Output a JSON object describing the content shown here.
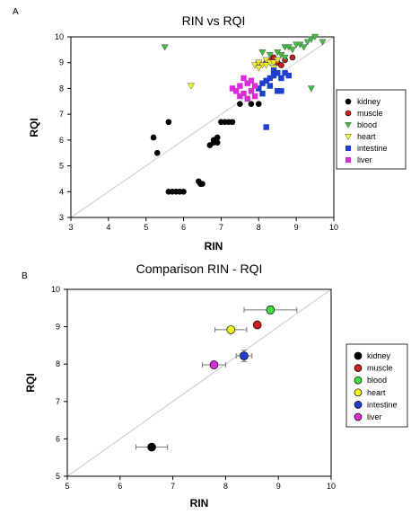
{
  "chart_data": [
    {
      "panel_label": "A",
      "type": "scatter",
      "title": "RIN vs RQI",
      "xlabel": "RIN",
      "ylabel": "RQI",
      "xlim": [
        3,
        10
      ],
      "ylim": [
        3,
        10
      ],
      "xticks": [
        "3",
        "4",
        "5",
        "6",
        "7",
        "8",
        "9",
        "10"
      ],
      "yticks": [
        "3",
        "4",
        "5",
        "6",
        "7",
        "8",
        "9",
        "10"
      ],
      "identity_line": true,
      "legend_position": "right",
      "series": [
        {
          "name": "kidney",
          "marker": "circle",
          "color": "#000000",
          "points": [
            [
              5.2,
              6.1
            ],
            [
              5.3,
              5.5
            ],
            [
              5.6,
              6.7
            ],
            [
              5.6,
              4.0
            ],
            [
              5.7,
              4.0
            ],
            [
              5.8,
              4.0
            ],
            [
              5.9,
              4.0
            ],
            [
              6.0,
              4.0
            ],
            [
              6.4,
              4.4
            ],
            [
              6.45,
              4.3
            ],
            [
              6.5,
              4.3
            ],
            [
              6.7,
              5.8
            ],
            [
              6.8,
              5.9
            ],
            [
              6.8,
              6.0
            ],
            [
              6.9,
              5.9
            ],
            [
              6.9,
              6.1
            ],
            [
              7.0,
              6.7
            ],
            [
              7.1,
              6.7
            ],
            [
              7.2,
              6.7
            ],
            [
              7.3,
              6.7
            ],
            [
              7.5,
              7.4
            ],
            [
              7.8,
              7.4
            ],
            [
              8.0,
              7.4
            ]
          ]
        },
        {
          "name": "muscle",
          "marker": "circle",
          "color": "#cc1f1f",
          "points": [
            [
              8.0,
              9.0
            ],
            [
              8.2,
              9.0
            ],
            [
              8.3,
              9.1
            ],
            [
              8.4,
              9.2
            ],
            [
              8.5,
              9.0
            ],
            [
              8.6,
              8.9
            ],
            [
              8.7,
              9.1
            ],
            [
              8.9,
              9.2
            ],
            [
              8.0,
              8.9
            ]
          ]
        },
        {
          "name": "blood",
          "marker": "triangle-down",
          "color": "#3fbf3f",
          "points": [
            [
              5.5,
              9.6
            ],
            [
              8.1,
              9.4
            ],
            [
              8.3,
              9.3
            ],
            [
              8.5,
              9.4
            ],
            [
              8.6,
              9.3
            ],
            [
              8.7,
              9.6
            ],
            [
              8.8,
              9.6
            ],
            [
              8.9,
              9.5
            ],
            [
              9.0,
              9.7
            ],
            [
              9.1,
              9.7
            ],
            [
              9.2,
              9.6
            ],
            [
              9.3,
              9.8
            ],
            [
              9.4,
              9.9
            ],
            [
              9.5,
              10.0
            ],
            [
              9.7,
              9.8
            ],
            [
              9.4,
              8.0
            ],
            [
              8.7,
              9.2
            ]
          ]
        },
        {
          "name": "heart",
          "marker": "triangle-down",
          "color": "#f2f22a",
          "points": [
            [
              6.2,
              8.1
            ],
            [
              7.9,
              8.9
            ],
            [
              8.0,
              9.0
            ],
            [
              8.1,
              8.9
            ],
            [
              8.2,
              9.1
            ],
            [
              8.2,
              8.9
            ],
            [
              8.3,
              9.0
            ],
            [
              8.4,
              8.8
            ],
            [
              8.5,
              9.1
            ],
            [
              8.0,
              8.8
            ],
            [
              8.4,
              9.0
            ]
          ]
        },
        {
          "name": "intestine",
          "marker": "square",
          "color": "#1f3fcf",
          "points": [
            [
              8.2,
              6.5
            ],
            [
              8.0,
              8.0
            ],
            [
              8.1,
              8.2
            ],
            [
              8.2,
              8.3
            ],
            [
              8.3,
              8.4
            ],
            [
              8.4,
              8.5
            ],
            [
              8.5,
              8.6
            ],
            [
              8.4,
              8.7
            ],
            [
              8.6,
              8.4
            ],
            [
              8.7,
              8.6
            ],
            [
              8.8,
              8.5
            ],
            [
              8.5,
              7.9
            ],
            [
              8.6,
              7.9
            ],
            [
              8.1,
              7.8
            ],
            [
              8.3,
              8.1
            ]
          ]
        },
        {
          "name": "liver",
          "marker": "square",
          "color": "#d62fd6",
          "points": [
            [
              7.3,
              8.0
            ],
            [
              7.4,
              7.9
            ],
            [
              7.5,
              8.1
            ],
            [
              7.6,
              7.8
            ],
            [
              7.7,
              8.2
            ],
            [
              7.8,
              7.9
            ],
            [
              7.9,
              7.7
            ],
            [
              7.9,
              8.1
            ],
            [
              7.5,
              7.7
            ],
            [
              7.6,
              8.4
            ],
            [
              7.8,
              8.3
            ],
            [
              7.7,
              7.6
            ]
          ]
        }
      ]
    },
    {
      "panel_label": "B",
      "type": "scatter",
      "title": "Comparison RIN - RQI",
      "xlabel": "RIN",
      "ylabel": "RQI",
      "xlim": [
        5,
        10
      ],
      "ylim": [
        5,
        10
      ],
      "xticks": [
        "5",
        "6",
        "7",
        "8",
        "9",
        "10"
      ],
      "yticks": [
        "5",
        "6",
        "7",
        "8",
        "9",
        "10"
      ],
      "identity_line": true,
      "legend_position": "right",
      "series": [
        {
          "name": "kidney",
          "color": "#000000",
          "x": 6.6,
          "y": 5.78,
          "xerr": 0.3,
          "yerr": 0.0
        },
        {
          "name": "muscle",
          "color": "#cc1f1f",
          "x": 8.6,
          "y": 9.05,
          "xerr": 0.0,
          "yerr": 0.0
        },
        {
          "name": "blood",
          "color": "#3fdf3f",
          "x": 8.85,
          "y": 9.45,
          "xerr": 0.5,
          "yerr": 0.1
        },
        {
          "name": "heart",
          "color": "#f2f22a",
          "x": 8.1,
          "y": 8.92,
          "xerr": 0.3,
          "yerr": 0.0
        },
        {
          "name": "intestine",
          "color": "#1f3fcf",
          "x": 8.35,
          "y": 8.22,
          "xerr": 0.15,
          "yerr": 0.15
        },
        {
          "name": "liver",
          "color": "#d62fd6",
          "x": 7.78,
          "y": 7.98,
          "xerr": 0.22,
          "yerr": 0.0
        }
      ]
    }
  ]
}
